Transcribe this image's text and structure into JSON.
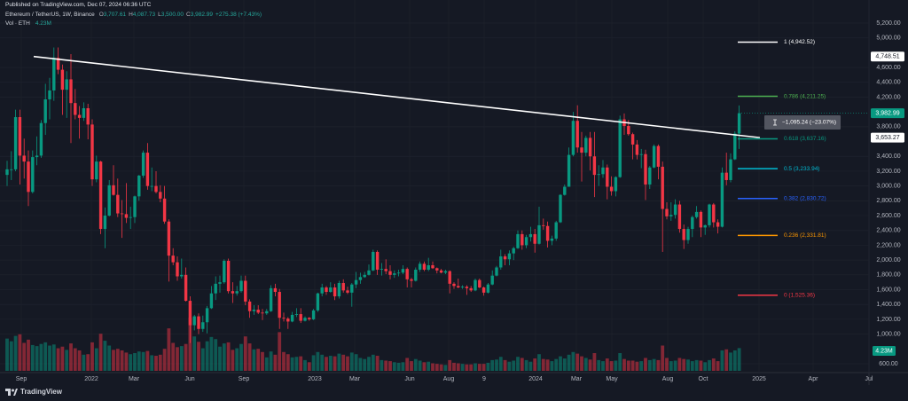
{
  "header": {
    "published": "Published on TradingView.com, Dec 07, 2024 06:36 UTC",
    "symbol": "Ethereum / TetherUS, 1W, Binance",
    "ohlc": [
      {
        "key": "O",
        "value": "3,707.61"
      },
      {
        "key": "H",
        "value": "4,087.73"
      },
      {
        "key": "L",
        "value": "3,500.00"
      },
      {
        "key": "C",
        "value": "3,982.99"
      }
    ],
    "change": "+275.38 (+7.43%)",
    "volume_label": "Vol · ETH",
    "volume_value": "4.23M"
  },
  "chart_data": {
    "type": "candlestick",
    "up_color": "#089981",
    "down_color": "#f23645",
    "candles": [
      [
        3150,
        3340,
        3000,
        3225
      ],
      [
        3225,
        3470,
        3080,
        3225
      ],
      [
        3225,
        4030,
        3200,
        3930
      ],
      [
        3930,
        4030,
        3020,
        3410
      ],
      [
        3410,
        3640,
        3100,
        3330
      ],
      [
        3330,
        3480,
        2730,
        2920
      ],
      [
        2920,
        3480,
        2900,
        3390
      ],
      [
        3390,
        3670,
        3280,
        3410
      ],
      [
        3410,
        3890,
        3380,
        3850
      ],
      [
        3850,
        4380,
        3690,
        4170
      ],
      [
        4170,
        4460,
        3900,
        4290
      ],
      [
        4290,
        4870,
        4150,
        4730
      ],
      [
        4730,
        4870,
        4510,
        4570
      ],
      [
        4570,
        4640,
        3960,
        4300
      ],
      [
        4300,
        4550,
        3920,
        4440
      ],
      [
        4440,
        4780,
        3580,
        4120
      ],
      [
        4120,
        4310,
        3900,
        3960
      ],
      [
        3960,
        4080,
        3640,
        3920
      ],
      [
        3920,
        4130,
        3880,
        4050
      ],
      [
        4050,
        4110,
        3630,
        3830
      ],
      [
        3830,
        3900,
        3000,
        3090
      ],
      [
        3090,
        3410,
        3050,
        3330
      ],
      [
        3330,
        3340,
        2350,
        2420
      ],
      [
        2420,
        2710,
        2160,
        2600
      ],
      [
        2600,
        3080,
        2590,
        3010
      ],
      [
        3010,
        3280,
        2870,
        2880
      ],
      [
        2880,
        3100,
        2580,
        2630
      ],
      [
        2630,
        2810,
        2300,
        2620
      ],
      [
        2620,
        3040,
        2500,
        2570
      ],
      [
        2570,
        2720,
        2420,
        2580
      ],
      [
        2580,
        2870,
        2500,
        2860
      ],
      [
        2860,
        3150,
        2800,
        3140
      ],
      [
        3140,
        3480,
        3110,
        3450
      ],
      [
        3450,
        3580,
        2950,
        3000
      ],
      [
        3000,
        3250,
        2930,
        3000
      ],
      [
        3000,
        3200,
        2900,
        2920
      ],
      [
        2920,
        3010,
        2780,
        2830
      ],
      [
        2830,
        3000,
        2490,
        2520
      ],
      [
        2520,
        2550,
        1710,
        2060
      ],
      [
        2060,
        2160,
        1930,
        1970
      ],
      [
        1970,
        2050,
        1720,
        1780
      ],
      [
        1780,
        2020,
        1750,
        1800
      ],
      [
        1800,
        1900,
        1440,
        1450
      ],
      [
        1450,
        1510,
        880,
        1120
      ],
      [
        1120,
        1260,
        1050,
        1240
      ],
      [
        1240,
        1280,
        1000,
        1070
      ],
      [
        1070,
        1250,
        1030,
        1160
      ],
      [
        1160,
        1380,
        1010,
        1350
      ],
      [
        1350,
        1650,
        1340,
        1550
      ],
      [
        1550,
        1780,
        1460,
        1680
      ],
      [
        1680,
        1790,
        1560,
        1700
      ],
      [
        1700,
        2010,
        1680,
        1990
      ],
      [
        1990,
        2020,
        1550,
        1580
      ],
      [
        1580,
        1700,
        1420,
        1550
      ],
      [
        1550,
        1650,
        1520,
        1580
      ],
      [
        1580,
        1790,
        1560,
        1720
      ],
      [
        1720,
        1790,
        1390,
        1440
      ],
      [
        1440,
        1470,
        1220,
        1310
      ],
      [
        1310,
        1390,
        1260,
        1330
      ],
      [
        1330,
        1390,
        1270,
        1290
      ],
      [
        1290,
        1340,
        1190,
        1280
      ],
      [
        1280,
        1340,
        1260,
        1310
      ],
      [
        1310,
        1660,
        1300,
        1620
      ],
      [
        1620,
        1680,
        1510,
        1570
      ],
      [
        1570,
        1610,
        1070,
        1220
      ],
      [
        1220,
        1290,
        1170,
        1210
      ],
      [
        1210,
        1230,
        1070,
        1170
      ],
      [
        1170,
        1300,
        1160,
        1260
      ],
      [
        1260,
        1350,
        1230,
        1270
      ],
      [
        1270,
        1350,
        1150,
        1180
      ],
      [
        1180,
        1240,
        1170,
        1220
      ],
      [
        1220,
        1230,
        1180,
        1200
      ],
      [
        1200,
        1340,
        1190,
        1320
      ],
      [
        1320,
        1560,
        1300,
        1550
      ],
      [
        1550,
        1680,
        1510,
        1630
      ],
      [
        1630,
        1650,
        1530,
        1570
      ],
      [
        1570,
        1700,
        1560,
        1630
      ],
      [
        1630,
        1680,
        1460,
        1510
      ],
      [
        1510,
        1720,
        1480,
        1690
      ],
      [
        1690,
        1740,
        1560,
        1590
      ],
      [
        1590,
        1640,
        1540,
        1560
      ],
      [
        1560,
        1690,
        1370,
        1670
      ],
      [
        1670,
        1840,
        1620,
        1730
      ],
      [
        1730,
        1830,
        1680,
        1770
      ],
      [
        1770,
        1840,
        1760,
        1800
      ],
      [
        1800,
        1940,
        1790,
        1860
      ],
      [
        1860,
        2140,
        1850,
        2110
      ],
      [
        2110,
        2130,
        1800,
        1870
      ],
      [
        1870,
        1960,
        1790,
        1880
      ],
      [
        1880,
        2010,
        1810,
        1850
      ],
      [
        1850,
        1930,
        1740,
        1800
      ],
      [
        1800,
        1860,
        1760,
        1820
      ],
      [
        1820,
        1870,
        1780,
        1830
      ],
      [
        1830,
        1930,
        1810,
        1880
      ],
      [
        1880,
        1900,
        1630,
        1740
      ],
      [
        1740,
        1760,
        1630,
        1720
      ],
      [
        1720,
        1900,
        1710,
        1870
      ],
      [
        1870,
        1980,
        1840,
        1950
      ],
      [
        1950,
        1980,
        1850,
        1870
      ],
      [
        1870,
        2030,
        1850,
        1930
      ],
      [
        1930,
        1980,
        1880,
        1890
      ],
      [
        1890,
        1900,
        1820,
        1860
      ],
      [
        1860,
        1880,
        1820,
        1830
      ],
      [
        1830,
        1870,
        1810,
        1850
      ],
      [
        1850,
        1860,
        1550,
        1680
      ],
      [
        1680,
        1700,
        1610,
        1650
      ],
      [
        1650,
        1750,
        1620,
        1630
      ],
      [
        1630,
        1660,
        1610,
        1640
      ],
      [
        1640,
        1660,
        1530,
        1620
      ],
      [
        1620,
        1650,
        1570,
        1590
      ],
      [
        1590,
        1750,
        1580,
        1730
      ],
      [
        1730,
        1750,
        1620,
        1630
      ],
      [
        1630,
        1640,
        1520,
        1560
      ],
      [
        1560,
        1690,
        1550,
        1670
      ],
      [
        1670,
        1860,
        1660,
        1790
      ],
      [
        1790,
        1920,
        1780,
        1900
      ],
      [
        1900,
        2140,
        1870,
        2050
      ],
      [
        2050,
        2080,
        1930,
        2010
      ],
      [
        2010,
        2130,
        1930,
        2090
      ],
      [
        2090,
        2180,
        2000,
        2160
      ],
      [
        2160,
        2400,
        2150,
        2350
      ],
      [
        2350,
        2400,
        2140,
        2200
      ],
      [
        2200,
        2340,
        2160,
        2310
      ],
      [
        2310,
        2450,
        2250,
        2350
      ],
      [
        2350,
        2420,
        2100,
        2220
      ],
      [
        2220,
        2720,
        2210,
        2470
      ],
      [
        2470,
        2560,
        2410,
        2460
      ],
      [
        2460,
        2520,
        2170,
        2260
      ],
      [
        2260,
        2330,
        2200,
        2290
      ],
      [
        2290,
        2530,
        2260,
        2510
      ],
      [
        2510,
        2890,
        2500,
        2880
      ],
      [
        2880,
        3020,
        2870,
        2990
      ],
      [
        2990,
        3520,
        2990,
        3420
      ],
      [
        3420,
        4000,
        3400,
        3880
      ],
      [
        3880,
        4090,
        3450,
        3520
      ],
      [
        3520,
        3730,
        3060,
        3450
      ],
      [
        3450,
        3680,
        3400,
        3650
      ],
      [
        3650,
        3730,
        3210,
        3400
      ],
      [
        3400,
        3730,
        2850,
        3150
      ],
      [
        3150,
        3280,
        3000,
        3160
      ],
      [
        3160,
        3350,
        3110,
        3250
      ],
      [
        3250,
        3290,
        2820,
        2990
      ],
      [
        2990,
        3130,
        2870,
        2930
      ],
      [
        2930,
        3130,
        2860,
        3120
      ],
      [
        3120,
        3950,
        3110,
        3900
      ],
      [
        3900,
        3980,
        3690,
        3810
      ],
      [
        3810,
        3890,
        3680,
        3700
      ],
      [
        3700,
        3720,
        3360,
        3560
      ],
      [
        3560,
        3620,
        3360,
        3420
      ],
      [
        3420,
        3500,
        3240,
        3430
      ],
      [
        3430,
        3490,
        2810,
        3020
      ],
      [
        3020,
        3270,
        2960,
        3250
      ],
      [
        3250,
        3560,
        3240,
        3540
      ],
      [
        3540,
        3560,
        3090,
        3260
      ],
      [
        3260,
        3330,
        2110,
        2690
      ],
      [
        2690,
        2780,
        2550,
        2590
      ],
      [
        2590,
        2780,
        2530,
        2610
      ],
      [
        2610,
        2820,
        2560,
        2750
      ],
      [
        2750,
        2800,
        2370,
        2420
      ],
      [
        2420,
        2480,
        2150,
        2270
      ],
      [
        2270,
        2450,
        2220,
        2420
      ],
      [
        2420,
        2600,
        2310,
        2580
      ],
      [
        2580,
        2730,
        2560,
        2650
      ],
      [
        2650,
        2670,
        2310,
        2440
      ],
      [
        2440,
        2480,
        2340,
        2470
      ],
      [
        2470,
        2760,
        2440,
        2750
      ],
      [
        2750,
        2770,
        2440,
        2510
      ],
      [
        2510,
        2550,
        2360,
        2450
      ],
      [
        2450,
        3250,
        2440,
        3180
      ],
      [
        3180,
        3450,
        3010,
        3080
      ],
      [
        3080,
        3440,
        3050,
        3360
      ],
      [
        3360,
        3740,
        3350,
        3707.61
      ],
      [
        3707.61,
        4087.73,
        3500,
        3982.99
      ]
    ],
    "volume": [
      6.0,
      5.5,
      6.5,
      6.8,
      5.2,
      5.8,
      4.8,
      4.6,
      5.0,
      5.3,
      4.7,
      4.9,
      4.2,
      4.5,
      3.9,
      5.1,
      4.2,
      3.8,
      3.0,
      3.1,
      5.3,
      4.2,
      6.9,
      5.6,
      4.7,
      3.9,
      4.1,
      3.8,
      3.4,
      3.1,
      3.3,
      3.6,
      3.5,
      3.7,
      2.9,
      2.8,
      3.0,
      4.1,
      7.9,
      5.2,
      4.4,
      4.6,
      5.0,
      9.9,
      6.4,
      5.4,
      4.2,
      5.5,
      6.3,
      5.9,
      4.5,
      5.1,
      5.3,
      3.9,
      4.2,
      5.0,
      6.4,
      5.1,
      4.0,
      4.1,
      3.5,
      2.5,
      3.6,
      3.0,
      7.2,
      3.5,
      3.1,
      2.5,
      2.6,
      2.7,
      2.0,
      1.6,
      2.9,
      3.5,
      3.0,
      2.6,
      2.8,
      2.7,
      3.2,
      3.0,
      2.7,
      3.4,
      3.1,
      2.4,
      2.2,
      2.6,
      3.0,
      2.8,
      2.0,
      1.9,
      1.8,
      1.6,
      1.5,
      1.6,
      2.4,
      1.8,
      2.2,
      1.9,
      1.6,
      1.7,
      1.4,
      1.3,
      1.2,
      1.1,
      2.0,
      1.5,
      1.4,
      1.3,
      1.2,
      1.2,
      1.4,
      1.3,
      1.3,
      1.5,
      2.0,
      2.1,
      2.6,
      2.0,
      1.7,
      1.9,
      2.6,
      2.4,
      2.0,
      1.7,
      2.3,
      3.1,
      2.2,
      2.1,
      1.8,
      2.2,
      2.7,
      2.3,
      3.0,
      3.5,
      3.2,
      2.7,
      2.4,
      2.1,
      3.3,
      2.0,
      1.8,
      2.3,
      1.8,
      1.9,
      3.3,
      2.2,
      1.9,
      1.9,
      1.7,
      1.8,
      2.4,
      2.0,
      2.2,
      2.0,
      4.7,
      2.4,
      1.8,
      1.9,
      2.4,
      2.2,
      2.1,
      1.8,
      2.0,
      1.9,
      1.6,
      2.0,
      2.3,
      1.8,
      3.8,
      4.0,
      3.4,
      3.8,
      4.23
    ],
    "volume_badge": {
      "value": 4.23,
      "label": "4.23M"
    },
    "ylim": [
      600,
      5200
    ],
    "yticks": [
      {
        "value": 5200,
        "label": "5,200.00"
      },
      {
        "value": 5000,
        "label": "5,000.00"
      },
      {
        "value": 4600,
        "label": "4,600.00"
      },
      {
        "value": 4400,
        "label": "4,400.00"
      },
      {
        "value": 4200,
        "label": "4,200.00"
      },
      {
        "value": 3800,
        "label": "3,800.00"
      },
      {
        "value": 3400,
        "label": "3,400.00"
      },
      {
        "value": 3200,
        "label": "3,200.00"
      },
      {
        "value": 3000,
        "label": "3,000.00"
      },
      {
        "value": 2800,
        "label": "2,800.00"
      },
      {
        "value": 2600,
        "label": "2,600.00"
      },
      {
        "value": 2400,
        "label": "2,400.00"
      },
      {
        "value": 2200,
        "label": "2,200.00"
      },
      {
        "value": 2000,
        "label": "2,000.00"
      },
      {
        "value": 1800,
        "label": "1,800.00"
      },
      {
        "value": 1600,
        "label": "1,600.00"
      },
      {
        "value": 1400,
        "label": "1,400.00"
      },
      {
        "value": 1200,
        "label": "1,200.00"
      },
      {
        "value": 1000,
        "label": "1,000.00"
      },
      {
        "value": 600,
        "label": "600.00"
      }
    ],
    "grid": true,
    "xtick_labels": [
      "Sep",
      "2022",
      "Mar",
      "Jun",
      "Sep",
      "2023",
      "Mar",
      "Jun",
      "Aug",
      "9",
      "2024",
      "Mar",
      "May",
      "Aug",
      "Oct",
      "2025",
      "Apr",
      "Jul"
    ],
    "trendline": [
      {
        "value": 4748.51,
        "label": "4,748.51"
      },
      {
        "value": 3653.27,
        "label": "3,653.27"
      }
    ],
    "last_price": {
      "value": 3982.99,
      "label": "3,982.99"
    },
    "fib_levels": [
      {
        "label": "1 (4,942.52)",
        "value": 4942.52,
        "color": "#ffffff"
      },
      {
        "label": "0.786 (4,211.25)",
        "value": 4211.25,
        "color": "#4caf50"
      },
      {
        "label": "0.618 (3,637.16)",
        "value": 3637.16,
        "color": "#089981"
      },
      {
        "label": "0.5 (3,233.94)",
        "value": 3233.94,
        "color": "#00bcd4"
      },
      {
        "label": "0.382 (2,830.72)",
        "value": 2830.72,
        "color": "#2962ff"
      },
      {
        "label": "0.236 (2,331.81)",
        "value": 2331.81,
        "color": "#ff9800"
      },
      {
        "label": "0 (1,525.36)",
        "value": 1525.36,
        "color": "#f23645"
      }
    ],
    "measure": "−1,095.24 (−23.07%)"
  },
  "footer": "TradingView"
}
